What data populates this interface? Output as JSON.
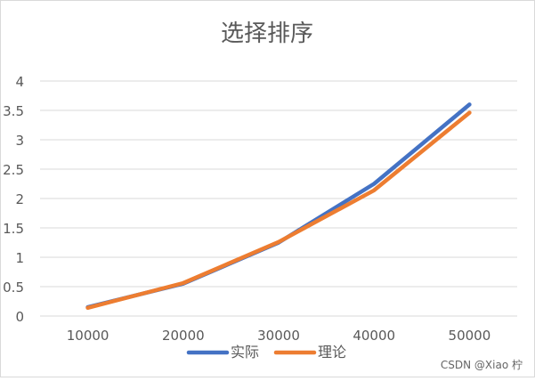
{
  "chart_data": {
    "type": "line",
    "title": "选择排序",
    "xlabel": "",
    "ylabel": "",
    "categories": [
      "10000",
      "20000",
      "30000",
      "40000",
      "50000"
    ],
    "ylim": [
      0,
      4
    ],
    "yticks": [
      "0",
      "0.5",
      "1",
      "1.5",
      "2",
      "2.5",
      "3",
      "3.5",
      "4"
    ],
    "grid": true,
    "legend_position": "bottom",
    "series": [
      {
        "name": "实际",
        "color": "#4472C4",
        "values": [
          0.15,
          0.55,
          1.25,
          2.25,
          3.6
        ]
      },
      {
        "name": "理论",
        "color": "#ED7D31",
        "values": [
          0.14,
          0.56,
          1.26,
          2.14,
          3.46
        ]
      }
    ]
  },
  "watermark": "CSDN @Xiao 柠"
}
